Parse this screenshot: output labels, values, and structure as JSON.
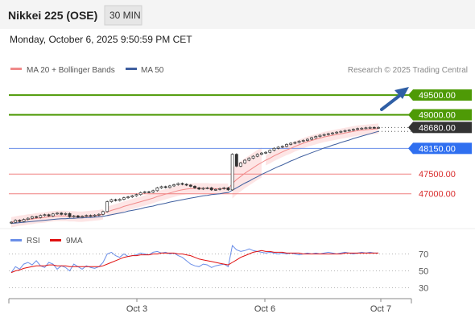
{
  "header": {
    "title": "Nikkei 225 (OSE)",
    "interval": "30 MIN",
    "datetime": "Monday, October 6, 2025 9:50:59 PM CET"
  },
  "legend": {
    "ma20": "MA 20 + Bollinger Bands",
    "ma50": "MA 50",
    "credit": "Research © 2025 Trading Central",
    "rsi": "RSI",
    "rsi_ma": "9MA"
  },
  "colors": {
    "green": "#4e9a06",
    "blue_line": "#6a8ee8",
    "blue_badge": "#2f6ff0",
    "red": "#f08080",
    "red_text": "#d92b2b",
    "dark_badge": "#333333",
    "ma20": "#f08a8a",
    "ma50": "#3f5f9f",
    "band_fill": "#fde2e2",
    "arrow": "#2f5fa5",
    "rsi": "#6a8ee8",
    "rsi_ma": "#e01010"
  },
  "chart_data": [
    {
      "type": "candlestick",
      "ylim": [
        46200,
        49950
      ],
      "x_ticks": [
        "Oct 3",
        "Oct 6",
        "Oct 7"
      ],
      "levels": [
        {
          "value": 49500,
          "label": "49500.00",
          "style": "green"
        },
        {
          "value": 49000,
          "label": "49000.00",
          "style": "green"
        },
        {
          "value": 48680,
          "label": "48680.00",
          "style": "current"
        },
        {
          "value": 48150,
          "label": "48150.00",
          "style": "blue"
        },
        {
          "value": 47500,
          "label": "47500.00",
          "style": "red"
        },
        {
          "value": 47000,
          "label": "47000.00",
          "style": "red"
        }
      ],
      "close": [
        46280,
        46330,
        46300,
        46350,
        46380,
        46420,
        46400,
        46450,
        46470,
        46440,
        46490,
        46510,
        46480,
        46500,
        46420,
        46440,
        46410,
        46430,
        46450,
        46440,
        46460,
        46480,
        46550,
        46800,
        46850,
        46830,
        46860,
        46900,
        46920,
        46950,
        46980,
        47030,
        47050,
        47040,
        47080,
        47150,
        47180,
        47160,
        47200,
        47230,
        47260,
        47240,
        47220,
        47190,
        47150,
        47120,
        47140,
        47150,
        47100,
        47110,
        47130,
        47150,
        47100,
        48000,
        47700,
        47780,
        47850,
        47900,
        47950,
        48000,
        48030,
        48050,
        48100,
        48150,
        48180,
        48200,
        48250,
        48280,
        48300,
        48330,
        48350,
        48380,
        48420,
        48450,
        48480,
        48500,
        48520,
        48540,
        48560,
        48580,
        48600,
        48610,
        48630,
        48650,
        48660,
        48670,
        48680,
        48675,
        48680
      ],
      "ma20": [
        46280,
        46300,
        46320,
        46330,
        46350,
        46360,
        46380,
        46390,
        46400,
        46420,
        46430,
        46440,
        46440,
        46440,
        46430,
        46430,
        46420,
        46420,
        46430,
        46440,
        46450,
        46460,
        46480,
        46540,
        46580,
        46610,
        46640,
        46680,
        46710,
        46740,
        46770,
        46800,
        46830,
        46860,
        46890,
        46930,
        46960,
        46990,
        47020,
        47050,
        47080,
        47100,
        47120,
        47130,
        47140,
        47140,
        47140,
        47140,
        47130,
        47130,
        47130,
        47130,
        47130,
        47260,
        47360,
        47440,
        47520,
        47590,
        47660,
        47730,
        47790,
        47850,
        47900,
        47960,
        48010,
        48060,
        48110,
        48150,
        48200,
        48240,
        48280,
        48320,
        48350,
        48380,
        48410,
        48440,
        48460,
        48480,
        48500,
        48520,
        48540,
        48560,
        48580,
        48600,
        48610,
        48620,
        48630,
        48640,
        48650
      ],
      "ma50": [
        46250,
        46260,
        46270,
        46280,
        46290,
        46300,
        46310,
        46320,
        46330,
        46340,
        46350,
        46360,
        46370,
        46370,
        46380,
        46380,
        46390,
        46390,
        46400,
        46400,
        46410,
        46420,
        46430,
        46450,
        46470,
        46490,
        46510,
        46530,
        46560,
        46580,
        46600,
        46620,
        46650,
        46670,
        46690,
        46720,
        46740,
        46760,
        46790,
        46810,
        46830,
        46850,
        46870,
        46890,
        46910,
        46930,
        46950,
        46960,
        46980,
        46990,
        47000,
        47020,
        47030,
        47090,
        47150,
        47210,
        47270,
        47320,
        47380,
        47430,
        47490,
        47540,
        47590,
        47640,
        47690,
        47730,
        47780,
        47830,
        47870,
        47920,
        47960,
        48000,
        48040,
        48080,
        48120,
        48160,
        48190,
        48230,
        48260,
        48300,
        48330,
        48360,
        48400,
        48430,
        48460,
        48490,
        48520,
        48550,
        48580
      ]
    },
    {
      "type": "line",
      "name": "RSI",
      "ylim": [
        20,
        80
      ],
      "y_ticks": [
        70,
        50,
        30
      ],
      "x_ticks": [
        "Oct 3",
        "Oct 6",
        "Oct 7"
      ],
      "rsi": [
        48,
        55,
        52,
        58,
        60,
        57,
        62,
        56,
        54,
        60,
        58,
        52,
        56,
        54,
        50,
        58,
        55,
        52,
        56,
        54,
        53,
        55,
        60,
        70,
        72,
        68,
        66,
        70,
        67,
        68,
        69,
        71,
        70,
        69,
        72,
        73,
        71,
        72,
        70,
        71,
        68,
        66,
        62,
        58,
        56,
        55,
        58,
        57,
        54,
        56,
        57,
        58,
        55,
        80,
        75,
        73,
        74,
        76,
        74,
        73,
        72,
        71,
        72,
        71,
        70,
        71,
        70,
        71,
        70,
        69,
        70,
        71,
        70,
        71,
        70,
        71,
        72,
        71,
        70,
        71,
        72,
        71,
        70,
        71,
        72,
        71,
        72,
        71,
        71
      ],
      "rsi_ma": [
        48,
        50,
        51,
        53,
        54,
        55,
        56,
        56,
        56,
        57,
        57,
        56,
        56,
        56,
        55,
        55,
        55,
        55,
        55,
        55,
        55,
        55,
        56,
        58,
        60,
        62,
        64,
        66,
        67,
        68,
        68,
        69,
        69,
        69,
        70,
        70,
        71,
        71,
        71,
        71,
        70,
        70,
        69,
        68,
        66,
        64,
        63,
        62,
        61,
        60,
        59,
        58,
        57,
        60,
        63,
        66,
        68,
        70,
        72,
        73,
        74,
        73,
        73,
        72,
        72,
        72,
        71,
        71,
        71,
        71,
        70,
        70,
        70,
        70,
        70,
        70,
        70,
        70,
        70,
        70,
        71,
        71,
        71,
        71,
        71,
        71,
        71,
        71,
        71
      ]
    }
  ]
}
